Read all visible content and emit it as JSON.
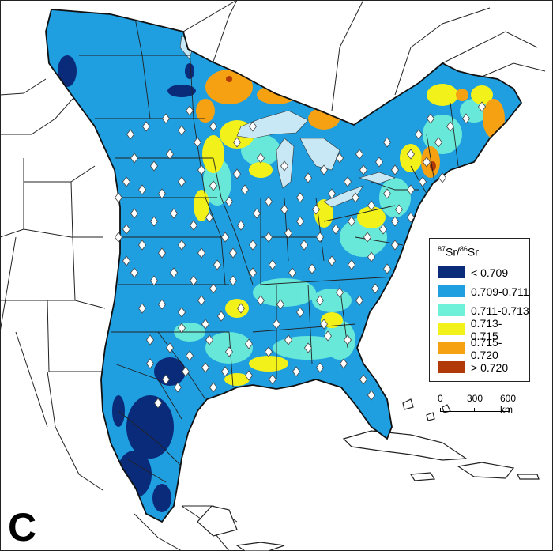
{
  "legend": {
    "title_base": "Sr/",
    "title_sup1": "87",
    "title_sup2": "86",
    "title_end": "Sr",
    "classes": [
      {
        "label": "< 0.709",
        "color": "#0a2a7a"
      },
      {
        "label": "0.709-0.711",
        "color": "#1f9ee0"
      },
      {
        "label": "0.711-0.713",
        "color": "#6ff0d8"
      },
      {
        "label": "0.713-0.715",
        "color": "#f2f21a"
      },
      {
        "label": "0.715-0.720",
        "color": "#f5a112"
      },
      {
        "label": "> 0.720",
        "color": "#b23a08"
      }
    ]
  },
  "scale_bar": {
    "labels": [
      "0",
      "300",
      "600 km"
    ]
  },
  "panel_label": "C",
  "colors": {
    "water": "#c8e8f5",
    "land_outside": "#ffffff",
    "boundary": "#111111",
    "marker": "#ffffff"
  }
}
